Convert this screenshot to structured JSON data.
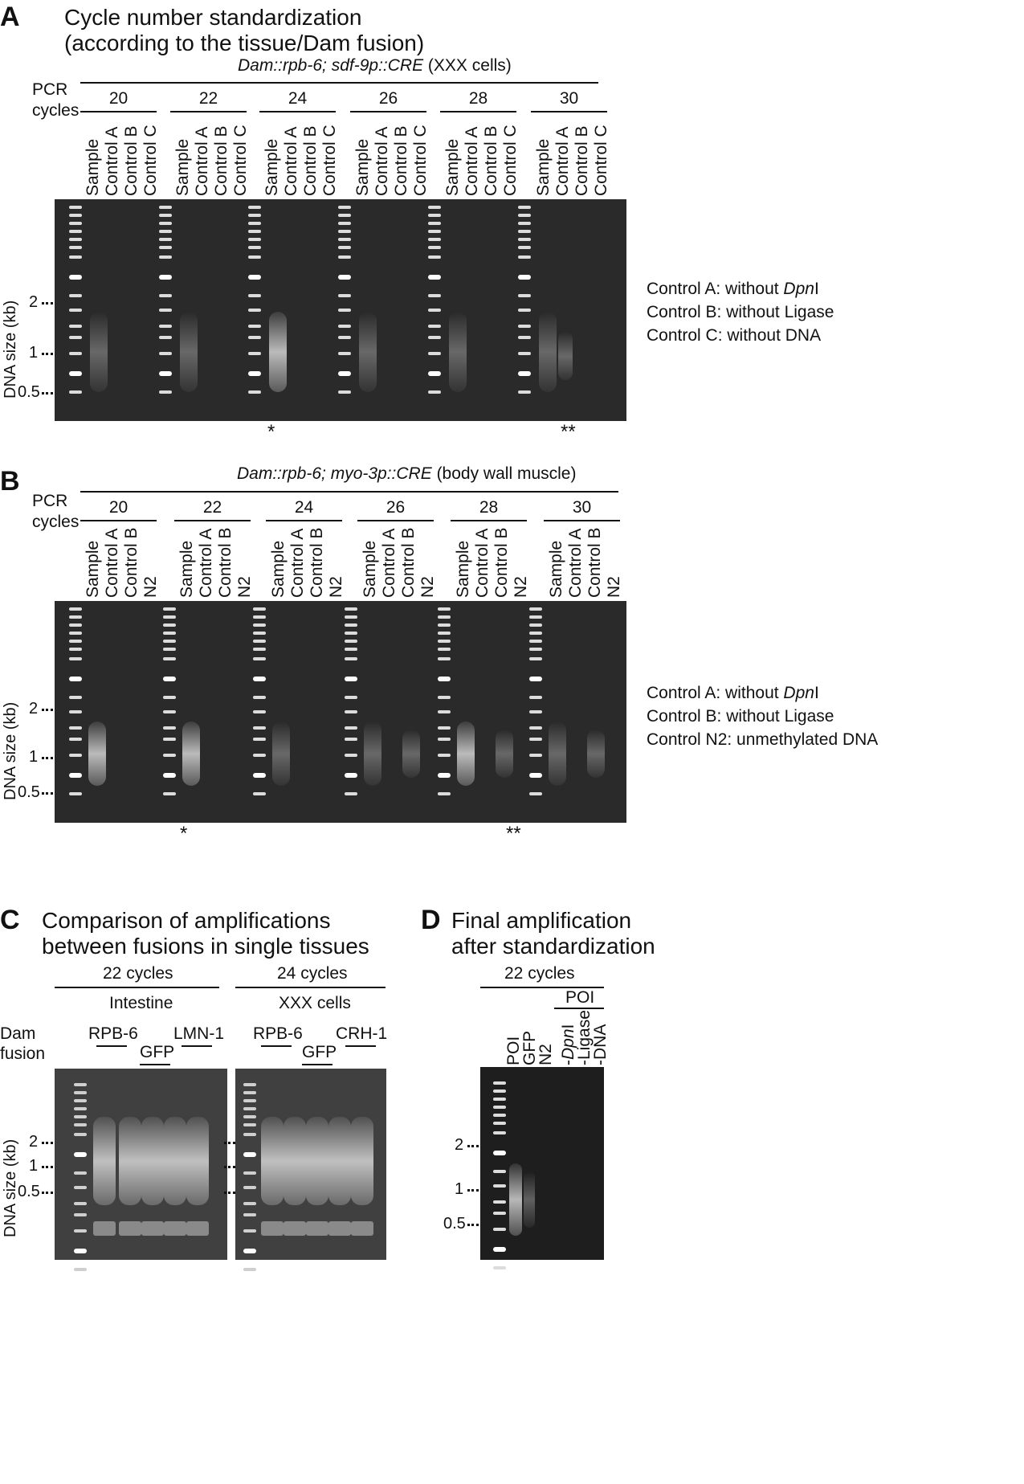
{
  "panelA": {
    "letter": "A",
    "title_line1": "Cycle number standardization",
    "title_line2": "(according to the tissue/Dam fusion)",
    "construct_italic": "Dam::rpb-6; sdf-9p::CRE",
    "construct_plain": " (XXX cells)",
    "pcr_label_1": "PCR",
    "pcr_label_2": "cycles",
    "cycles": [
      "20",
      "22",
      "24",
      "26",
      "28",
      "30"
    ],
    "lanes": [
      "Sample",
      "Control A",
      "Control B",
      "Control C"
    ],
    "y_axis": "DNA size (kb)",
    "ticks": [
      "2",
      "1",
      "0.5"
    ],
    "legend_1a": "Control A: without ",
    "legend_1b": "Dpn",
    "legend_1c": "I",
    "legend_2": "Control B: without Ligase",
    "legend_3": "Control C: without DNA",
    "star_single": "*",
    "star_double": "**"
  },
  "panelB": {
    "letter": "B",
    "construct_italic": "Dam::rpb-6; myo-3p::CRE",
    "construct_plain": " (body wall muscle)",
    "pcr_label_1": "PCR",
    "pcr_label_2": "cycles",
    "cycles": [
      "20",
      "22",
      "24",
      "26",
      "28",
      "30"
    ],
    "lanes": [
      "Sample",
      "Control A",
      "Control B",
      "N2"
    ],
    "y_axis": "DNA size (kb)",
    "ticks": [
      "2",
      "1",
      "0.5"
    ],
    "legend_1a": "Control A: without ",
    "legend_1b": "Dpn",
    "legend_1c": "I",
    "legend_2": "Control B: without Ligase",
    "legend_3": "Control N2: unmethylated DNA",
    "star_single": "*",
    "star_double": "**"
  },
  "panelC": {
    "letter": "C",
    "title_line1": "Comparison of amplifications",
    "title_line2": "between fusions in single tissues",
    "left_cycles": "22 cycles",
    "left_tissue": "Intestine",
    "right_cycles": "24 cycles",
    "right_tissue": "XXX cells",
    "dam_label_1": "Dam",
    "dam_label_2": "fusion",
    "left_fusions": [
      "RPB-6",
      "GFP",
      "LMN-1"
    ],
    "right_fusions": [
      "RPB-6",
      "GFP",
      "CRH-1"
    ],
    "y_axis": "DNA size (kb)",
    "ticks": [
      "2",
      "1",
      "0.5"
    ]
  },
  "panelD": {
    "letter": "D",
    "title_line1": "Final amplification",
    "title_line2": "after standardization",
    "cycles": "22 cycles",
    "poi_group": "POI",
    "lanes": [
      "POI",
      "GFP",
      "N2"
    ],
    "lane_dpn_a": "-",
    "lane_dpn_b": "Dpn",
    "lane_dpn_c": "I",
    "lane_ligase": "-Ligase",
    "lane_dna": "-DNA",
    "ticks": [
      "2",
      "1",
      "0.5"
    ]
  }
}
